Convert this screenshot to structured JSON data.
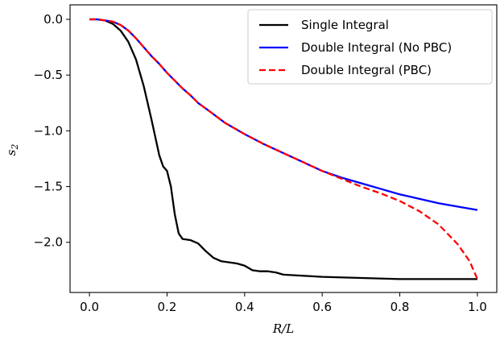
{
  "chart_data": {
    "type": "line",
    "title": "",
    "xlabel": "R/L",
    "ylabel": "s2",
    "ylabel_main": "s",
    "ylabel_sub": "2",
    "xlim": [
      -0.05,
      1.05
    ],
    "ylim": [
      -2.45,
      0.13
    ],
    "x_ticks": [
      0.0,
      0.2,
      0.4,
      0.6,
      0.8,
      1.0
    ],
    "x_tick_labels": [
      "0.0",
      "0.2",
      "0.4",
      "0.6",
      "0.8",
      "1.0"
    ],
    "y_ticks": [
      0.0,
      -0.5,
      -1.0,
      -1.5,
      -2.0
    ],
    "y_tick_labels": [
      "0.0",
      "−0.5",
      "−1.0",
      "−1.5",
      "−2.0"
    ],
    "grid": false,
    "legend_position": "top-right",
    "series": [
      {
        "name": "Single Integral",
        "color": "#000000",
        "style": "solid",
        "points": [
          [
            0.0,
            0.0
          ],
          [
            0.02,
            0.0
          ],
          [
            0.04,
            -0.01
          ],
          [
            0.06,
            -0.04
          ],
          [
            0.08,
            -0.1
          ],
          [
            0.1,
            -0.2
          ],
          [
            0.12,
            -0.36
          ],
          [
            0.14,
            -0.6
          ],
          [
            0.16,
            -0.9
          ],
          [
            0.18,
            -1.22
          ],
          [
            0.19,
            -1.32
          ],
          [
            0.2,
            -1.36
          ],
          [
            0.21,
            -1.5
          ],
          [
            0.22,
            -1.75
          ],
          [
            0.23,
            -1.92
          ],
          [
            0.24,
            -1.97
          ],
          [
            0.26,
            -1.98
          ],
          [
            0.28,
            -2.01
          ],
          [
            0.3,
            -2.08
          ],
          [
            0.32,
            -2.14
          ],
          [
            0.34,
            -2.17
          ],
          [
            0.36,
            -2.18
          ],
          [
            0.38,
            -2.19
          ],
          [
            0.4,
            -2.21
          ],
          [
            0.42,
            -2.25
          ],
          [
            0.44,
            -2.26
          ],
          [
            0.46,
            -2.26
          ],
          [
            0.48,
            -2.27
          ],
          [
            0.5,
            -2.29
          ],
          [
            0.55,
            -2.3
          ],
          [
            0.6,
            -2.31
          ],
          [
            0.7,
            -2.32
          ],
          [
            0.8,
            -2.33
          ],
          [
            0.9,
            -2.33
          ],
          [
            1.0,
            -2.33
          ]
        ]
      },
      {
        "name": "Double Integral (No PBC)",
        "color": "#0000ff",
        "style": "solid",
        "points": [
          [
            0.0,
            0.0
          ],
          [
            0.02,
            0.0
          ],
          [
            0.04,
            -0.01
          ],
          [
            0.06,
            -0.02
          ],
          [
            0.08,
            -0.05
          ],
          [
            0.1,
            -0.1
          ],
          [
            0.12,
            -0.17
          ],
          [
            0.14,
            -0.25
          ],
          [
            0.16,
            -0.33
          ],
          [
            0.18,
            -0.4
          ],
          [
            0.2,
            -0.48
          ],
          [
            0.22,
            -0.55
          ],
          [
            0.24,
            -0.62
          ],
          [
            0.26,
            -0.68
          ],
          [
            0.28,
            -0.75
          ],
          [
            0.3,
            -0.8
          ],
          [
            0.35,
            -0.93
          ],
          [
            0.4,
            -1.03
          ],
          [
            0.45,
            -1.12
          ],
          [
            0.5,
            -1.2
          ],
          [
            0.55,
            -1.28
          ],
          [
            0.6,
            -1.36
          ],
          [
            0.65,
            -1.42
          ],
          [
            0.7,
            -1.47
          ],
          [
            0.75,
            -1.52
          ],
          [
            0.8,
            -1.57
          ],
          [
            0.85,
            -1.61
          ],
          [
            0.9,
            -1.65
          ],
          [
            0.95,
            -1.68
          ],
          [
            1.0,
            -1.71
          ]
        ]
      },
      {
        "name": "Double Integral (PBC)",
        "color": "#ff0000",
        "style": "dashed",
        "points": [
          [
            0.0,
            0.0
          ],
          [
            0.02,
            0.0
          ],
          [
            0.04,
            -0.01
          ],
          [
            0.06,
            -0.02
          ],
          [
            0.08,
            -0.05
          ],
          [
            0.1,
            -0.1
          ],
          [
            0.12,
            -0.17
          ],
          [
            0.14,
            -0.25
          ],
          [
            0.16,
            -0.33
          ],
          [
            0.18,
            -0.4
          ],
          [
            0.2,
            -0.48
          ],
          [
            0.22,
            -0.55
          ],
          [
            0.24,
            -0.62
          ],
          [
            0.26,
            -0.68
          ],
          [
            0.28,
            -0.75
          ],
          [
            0.3,
            -0.8
          ],
          [
            0.35,
            -0.93
          ],
          [
            0.4,
            -1.03
          ],
          [
            0.45,
            -1.12
          ],
          [
            0.5,
            -1.2
          ],
          [
            0.55,
            -1.28
          ],
          [
            0.6,
            -1.36
          ],
          [
            0.65,
            -1.43
          ],
          [
            0.7,
            -1.5
          ],
          [
            0.75,
            -1.56
          ],
          [
            0.8,
            -1.63
          ],
          [
            0.85,
            -1.72
          ],
          [
            0.9,
            -1.84
          ],
          [
            0.95,
            -2.02
          ],
          [
            0.98,
            -2.17
          ],
          [
            1.0,
            -2.33
          ]
        ]
      }
    ]
  }
}
